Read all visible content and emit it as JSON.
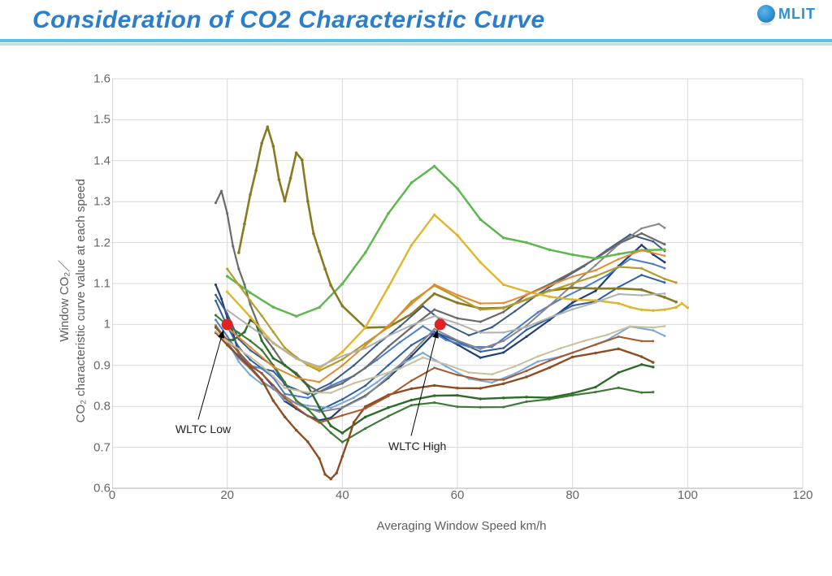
{
  "header": {
    "title": "Consideration of CO2 Characteristic Curve",
    "logo_text": "MLIT"
  },
  "chart": {
    "type": "line-scatter",
    "xlabel": "Averaging Window Speed   km/h",
    "ylabel_line1": "Window CO₂／",
    "ylabel_line2": "CO₂ characteristic curve value at each speed",
    "xlim": [
      0,
      120
    ],
    "ylim": [
      0.6,
      1.6
    ],
    "xtick_step": 20,
    "ytick_step": 0.1,
    "background_color": "#ffffff",
    "grid_color": "#d9d9d9",
    "axis_color": "#bfbfbf",
    "tick_font_color": "#666666",
    "label_font_color": "#5e5e5e",
    "tick_fontsize": 15,
    "label_fontsize": 15,
    "series": [
      {
        "name": "s01",
        "color": "#1f3f7a",
        "width": 2.2,
        "xs": [
          18,
          19,
          20,
          21,
          22,
          24,
          26,
          28,
          30,
          32,
          34,
          36,
          38,
          40,
          44,
          48,
          52,
          56,
          60,
          64,
          68,
          72,
          76,
          80,
          84,
          88,
          92,
          94,
          96
        ],
        "ys": [
          1.1,
          1.06,
          1.02,
          0.98,
          0.93,
          0.9,
          0.88,
          0.85,
          0.82,
          0.8,
          0.78,
          0.77,
          0.78,
          0.8,
          0.83,
          0.87,
          0.92,
          0.98,
          0.95,
          0.92,
          0.93,
          0.97,
          1.01,
          1.06,
          1.09,
          1.15,
          1.2,
          1.18,
          1.16
        ]
      },
      {
        "name": "s02",
        "color": "#2e5fa3",
        "width": 2.0,
        "xs": [
          18,
          20,
          22,
          24,
          26,
          28,
          30,
          32,
          34,
          36,
          40,
          44,
          48,
          52,
          56,
          60,
          64,
          68,
          72,
          76,
          80,
          84,
          88,
          92,
          96
        ],
        "ys": [
          1.06,
          1.0,
          0.95,
          0.92,
          0.9,
          0.89,
          0.86,
          0.82,
          0.8,
          0.79,
          0.82,
          0.85,
          0.9,
          0.95,
          0.98,
          0.96,
          0.94,
          0.95,
          0.99,
          1.02,
          1.05,
          1.06,
          1.1,
          1.12,
          1.1
        ]
      },
      {
        "name": "s03",
        "color": "#4a7fc8",
        "width": 2.0,
        "xs": [
          18,
          20,
          22,
          24,
          26,
          28,
          30,
          34,
          38,
          42,
          46,
          50,
          54,
          58,
          62,
          66,
          70,
          74,
          78,
          82,
          86,
          90,
          94,
          96
        ],
        "ys": [
          1.02,
          0.98,
          0.93,
          0.9,
          0.89,
          0.87,
          0.83,
          0.82,
          0.85,
          0.88,
          0.92,
          0.96,
          1.0,
          0.97,
          0.95,
          0.95,
          0.99,
          1.03,
          1.06,
          1.09,
          1.12,
          1.16,
          1.15,
          1.14
        ]
      },
      {
        "name": "s04",
        "color": "#7aa6de",
        "width": 2.0,
        "xs": [
          18,
          20,
          22,
          24,
          26,
          28,
          30,
          34,
          38,
          42,
          46,
          50,
          54,
          58,
          62,
          66,
          70,
          74,
          78,
          82,
          86,
          90,
          94,
          96
        ],
        "ys": [
          1.0,
          0.96,
          0.91,
          0.88,
          0.86,
          0.85,
          0.82,
          0.81,
          0.8,
          0.83,
          0.86,
          0.9,
          0.93,
          0.9,
          0.87,
          0.86,
          0.88,
          0.91,
          0.93,
          0.95,
          0.97,
          1.0,
          0.99,
          0.98
        ]
      },
      {
        "name": "s05",
        "color": "#3b5b88",
        "width": 2.0,
        "xs": [
          18,
          20,
          22,
          24,
          26,
          28,
          30,
          34,
          38,
          42,
          46,
          50,
          54,
          58,
          62,
          66,
          70,
          74,
          78,
          82,
          86,
          90,
          94,
          96
        ],
        "ys": [
          1.08,
          1.03,
          0.97,
          0.94,
          0.92,
          0.9,
          0.85,
          0.83,
          0.86,
          0.9,
          0.95,
          1.0,
          1.05,
          1.01,
          0.98,
          1.0,
          1.04,
          1.08,
          1.11,
          1.14,
          1.18,
          1.22,
          1.2,
          1.18
        ]
      },
      {
        "name": "s06",
        "color": "#888888",
        "width": 2.0,
        "xs": [
          18,
          20,
          22,
          24,
          26,
          28,
          30,
          32,
          34,
          36,
          40,
          44,
          48,
          52,
          56,
          60,
          64,
          68,
          72,
          76,
          80,
          84,
          88,
          92,
          95,
          96
        ],
        "ys": [
          1.0,
          0.96,
          0.92,
          0.89,
          0.87,
          0.85,
          0.83,
          0.81,
          0.8,
          0.79,
          0.8,
          0.83,
          0.87,
          0.93,
          0.99,
          0.96,
          0.94,
          0.96,
          1.0,
          1.05,
          1.1,
          1.15,
          1.2,
          1.24,
          1.25,
          1.24
        ]
      },
      {
        "name": "s07",
        "color": "#6b6b6b",
        "width": 2.2,
        "xs": [
          18,
          19,
          20,
          21,
          22,
          23,
          24,
          26,
          28,
          30,
          32,
          34,
          36,
          40,
          44,
          48,
          52,
          56,
          60,
          64,
          68,
          72,
          76,
          80,
          84,
          88,
          92,
          96
        ],
        "ys": [
          1.3,
          1.33,
          1.28,
          1.2,
          1.14,
          1.1,
          1.05,
          0.98,
          0.94,
          0.9,
          0.88,
          0.85,
          0.84,
          0.86,
          0.9,
          0.95,
          1.0,
          1.04,
          1.02,
          1.01,
          1.03,
          1.07,
          1.1,
          1.13,
          1.16,
          1.2,
          1.22,
          1.2
        ]
      },
      {
        "name": "s08",
        "color": "#5fb84e",
        "width": 2.5,
        "xs": [
          20,
          24,
          28,
          32,
          36,
          40,
          44,
          48,
          52,
          56,
          60,
          64,
          68,
          72,
          76,
          80,
          84,
          88,
          92,
          96
        ],
        "ys": [
          1.12,
          1.08,
          1.04,
          1.02,
          1.04,
          1.1,
          1.18,
          1.28,
          1.35,
          1.39,
          1.34,
          1.26,
          1.22,
          1.2,
          1.18,
          1.17,
          1.16,
          1.17,
          1.18,
          1.18
        ]
      },
      {
        "name": "s09",
        "color": "#2e6b2b",
        "width": 2.4,
        "xs": [
          18,
          19,
          20,
          21,
          22,
          23,
          24,
          25,
          26,
          28,
          30,
          32,
          34,
          36,
          38,
          40,
          44,
          48,
          52,
          56,
          60,
          64,
          68,
          72,
          76,
          80,
          84,
          88,
          92,
          94
        ],
        "ys": [
          1.0,
          0.98,
          0.97,
          0.97,
          0.98,
          0.99,
          1.01,
          1.0,
          0.96,
          0.92,
          0.9,
          0.88,
          0.85,
          0.8,
          0.76,
          0.74,
          0.78,
          0.8,
          0.82,
          0.83,
          0.83,
          0.82,
          0.82,
          0.82,
          0.82,
          0.83,
          0.85,
          0.88,
          0.9,
          0.9
        ]
      },
      {
        "name": "s10",
        "color": "#3e7a37",
        "width": 2.2,
        "xs": [
          18,
          20,
          22,
          24,
          26,
          28,
          30,
          32,
          34,
          36,
          38,
          40,
          44,
          48,
          52,
          56,
          60,
          64,
          68,
          72,
          76,
          80,
          84,
          88,
          92,
          94
        ],
        "ys": [
          1.02,
          1.0,
          0.98,
          0.96,
          0.94,
          0.9,
          0.86,
          0.82,
          0.8,
          0.77,
          0.74,
          0.72,
          0.75,
          0.78,
          0.8,
          0.81,
          0.8,
          0.8,
          0.8,
          0.81,
          0.82,
          0.83,
          0.84,
          0.85,
          0.84,
          0.84
        ]
      },
      {
        "name": "s11",
        "color": "#887a21",
        "width": 2.6,
        "xs": [
          22,
          23,
          24,
          25,
          26,
          27,
          28,
          29,
          30,
          31,
          32,
          33,
          34,
          35,
          36,
          37,
          38,
          40,
          44,
          48,
          52,
          56,
          60,
          64,
          68,
          72,
          76,
          80,
          84,
          88,
          92,
          96,
          98
        ],
        "ys": [
          1.18,
          1.25,
          1.32,
          1.38,
          1.45,
          1.49,
          1.44,
          1.36,
          1.3,
          1.36,
          1.42,
          1.4,
          1.3,
          1.22,
          1.18,
          1.14,
          1.1,
          1.05,
          1.0,
          1.0,
          1.03,
          1.08,
          1.06,
          1.04,
          1.04,
          1.06,
          1.08,
          1.09,
          1.09,
          1.09,
          1.09,
          1.07,
          1.06
        ]
      },
      {
        "name": "s12",
        "color": "#b59d2a",
        "width": 2.2,
        "xs": [
          20,
          22,
          24,
          26,
          28,
          30,
          32,
          34,
          36,
          40,
          44,
          48,
          52,
          56,
          60,
          64,
          68,
          72,
          76,
          80,
          84,
          88,
          92,
          96,
          98
        ],
        "ys": [
          1.14,
          1.1,
          1.06,
          1.02,
          0.98,
          0.94,
          0.92,
          0.9,
          0.89,
          0.92,
          0.96,
          1.0,
          1.06,
          1.1,
          1.07,
          1.04,
          1.04,
          1.06,
          1.08,
          1.1,
          1.12,
          1.14,
          1.14,
          1.12,
          1.11
        ]
      },
      {
        "name": "s13",
        "color": "#e0b52e",
        "width": 2.4,
        "xs": [
          20,
          24,
          28,
          32,
          36,
          40,
          44,
          48,
          52,
          56,
          60,
          64,
          68,
          72,
          76,
          80,
          84,
          88,
          90,
          92,
          94,
          96,
          98,
          99,
          100
        ],
        "ys": [
          1.08,
          1.02,
          0.96,
          0.92,
          0.9,
          0.94,
          1.0,
          1.1,
          1.2,
          1.27,
          1.22,
          1.15,
          1.1,
          1.08,
          1.07,
          1.06,
          1.06,
          1.06,
          1.05,
          1.04,
          1.04,
          1.04,
          1.05,
          1.06,
          1.04
        ]
      },
      {
        "name": "s14",
        "color": "#e58a2e",
        "width": 2.0,
        "xs": [
          20,
          24,
          28,
          32,
          36,
          40,
          44,
          48,
          52,
          56,
          60,
          64,
          68,
          72,
          76,
          80,
          84,
          88,
          92,
          96
        ],
        "ys": [
          1.0,
          0.95,
          0.9,
          0.87,
          0.86,
          0.9,
          0.95,
          1.0,
          1.05,
          1.1,
          1.08,
          1.06,
          1.06,
          1.08,
          1.1,
          1.12,
          1.14,
          1.16,
          1.18,
          1.17
        ]
      },
      {
        "name": "s15",
        "color": "#8d4c22",
        "width": 2.4,
        "xs": [
          18,
          20,
          22,
          24,
          26,
          28,
          30,
          32,
          34,
          36,
          37,
          38,
          39,
          40,
          41,
          42,
          44,
          48,
          52,
          56,
          60,
          64,
          68,
          72,
          76,
          80,
          84,
          88,
          92,
          94
        ],
        "ys": [
          0.98,
          0.95,
          0.92,
          0.9,
          0.87,
          0.82,
          0.78,
          0.75,
          0.72,
          0.68,
          0.64,
          0.62,
          0.64,
          0.68,
          0.72,
          0.76,
          0.8,
          0.83,
          0.85,
          0.86,
          0.85,
          0.85,
          0.86,
          0.88,
          0.9,
          0.92,
          0.93,
          0.94,
          0.92,
          0.91
        ]
      },
      {
        "name": "s16",
        "color": "#a9572a",
        "width": 2.0,
        "xs": [
          18,
          20,
          22,
          24,
          26,
          28,
          30,
          32,
          34,
          36,
          40,
          44,
          48,
          52,
          56,
          60,
          64,
          68,
          72,
          76,
          80,
          84,
          88,
          92,
          94
        ],
        "ys": [
          1.0,
          0.97,
          0.94,
          0.91,
          0.88,
          0.85,
          0.82,
          0.8,
          0.78,
          0.76,
          0.78,
          0.8,
          0.83,
          0.87,
          0.9,
          0.88,
          0.87,
          0.87,
          0.89,
          0.91,
          0.93,
          0.95,
          0.97,
          0.96,
          0.96
        ]
      },
      {
        "name": "s17",
        "color": "#c7c09a",
        "width": 2.0,
        "xs": [
          18,
          20,
          22,
          24,
          26,
          28,
          30,
          34,
          38,
          42,
          46,
          50,
          54,
          58,
          62,
          66,
          70,
          74,
          78,
          82,
          86,
          90,
          94,
          96
        ],
        "ys": [
          0.98,
          0.96,
          0.94,
          0.92,
          0.9,
          0.88,
          0.85,
          0.84,
          0.84,
          0.86,
          0.88,
          0.9,
          0.92,
          0.9,
          0.88,
          0.88,
          0.9,
          0.92,
          0.94,
          0.96,
          0.98,
          1.0,
          1.0,
          1.0
        ]
      },
      {
        "name": "s18",
        "color": "#b0b0b0",
        "width": 2.0,
        "xs": [
          20,
          24,
          28,
          32,
          36,
          40,
          44,
          48,
          52,
          56,
          60,
          64,
          68,
          72,
          76,
          80,
          84,
          88,
          92,
          96
        ],
        "ys": [
          1.04,
          1.0,
          0.96,
          0.92,
          0.9,
          0.92,
          0.94,
          0.97,
          1.0,
          1.02,
          1.0,
          0.98,
          0.98,
          1.0,
          1.02,
          1.04,
          1.06,
          1.08,
          1.08,
          1.08
        ]
      }
    ],
    "markers": [
      {
        "name": "wltc-low-marker",
        "x": 20,
        "y": 1.0,
        "r": 7,
        "color": "#e22121"
      },
      {
        "name": "wltc-high-marker",
        "x": 57,
        "y": 1.0,
        "r": 7,
        "color": "#e22121"
      }
    ],
    "annotations": [
      {
        "name": "wltc-low-label",
        "text": "WLTC Low",
        "x_label": 11,
        "y_label": 0.76,
        "arrow_to_x": 19.3,
        "arrow_to_y": 0.985
      },
      {
        "name": "wltc-high-label",
        "text": "WLTC High",
        "x_label": 48,
        "y_label": 0.72,
        "arrow_to_x": 56.5,
        "arrow_to_y": 0.985
      }
    ]
  }
}
